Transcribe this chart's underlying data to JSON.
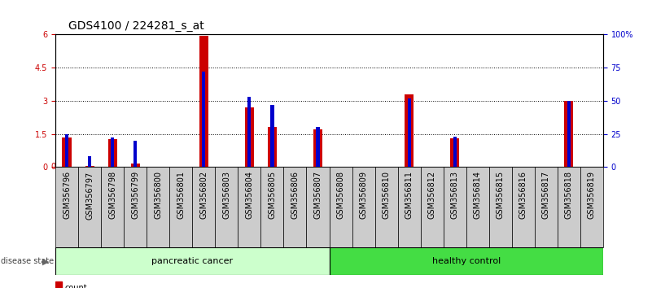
{
  "title": "GDS4100 / 224281_s_at",
  "samples": [
    "GSM356796",
    "GSM356797",
    "GSM356798",
    "GSM356799",
    "GSM356800",
    "GSM356801",
    "GSM356802",
    "GSM356803",
    "GSM356804",
    "GSM356805",
    "GSM356806",
    "GSM356807",
    "GSM356808",
    "GSM356809",
    "GSM356810",
    "GSM356811",
    "GSM356812",
    "GSM356813",
    "GSM356814",
    "GSM356815",
    "GSM356816",
    "GSM356817",
    "GSM356818",
    "GSM356819"
  ],
  "counts": [
    1.35,
    0.05,
    1.25,
    0.15,
    0.0,
    0.0,
    5.95,
    0.0,
    2.7,
    1.8,
    0.0,
    1.7,
    0.0,
    0.0,
    0.0,
    3.3,
    0.0,
    1.3,
    0.0,
    0.0,
    0.0,
    0.0,
    3.0,
    0.0
  ],
  "percentiles": [
    25,
    8,
    22,
    20,
    0,
    0,
    72,
    0,
    53,
    47,
    0,
    30,
    0,
    0,
    0,
    52,
    0,
    23,
    0,
    0,
    0,
    0,
    50,
    0
  ],
  "group_labels": [
    "pancreatic cancer",
    "healthy control"
  ],
  "pc_count": 12,
  "hc_count": 12,
  "bar_color": "#CC0000",
  "percentile_color": "#0000CC",
  "plot_bg": "#FFFFFF",
  "xtick_bg": "#CCCCCC",
  "ylim_left": [
    0,
    6
  ],
  "ylim_right": [
    0,
    100
  ],
  "yticks_left": [
    0,
    1.5,
    3.0,
    4.5,
    6
  ],
  "ytick_labels_left": [
    "0",
    "1.5",
    "3",
    "4.5",
    "6"
  ],
  "yticks_right": [
    0,
    25,
    50,
    75,
    100
  ],
  "ytick_labels_right": [
    "0",
    "25",
    "50",
    "75",
    "100%"
  ],
  "grid_color": "#000000",
  "title_fontsize": 10,
  "tick_fontsize": 7,
  "label_fontsize": 8,
  "pc_color": "#CCFFCC",
  "hc_color": "#44DD44",
  "legend_count_color": "#CC0000",
  "legend_pct_color": "#0000CC"
}
